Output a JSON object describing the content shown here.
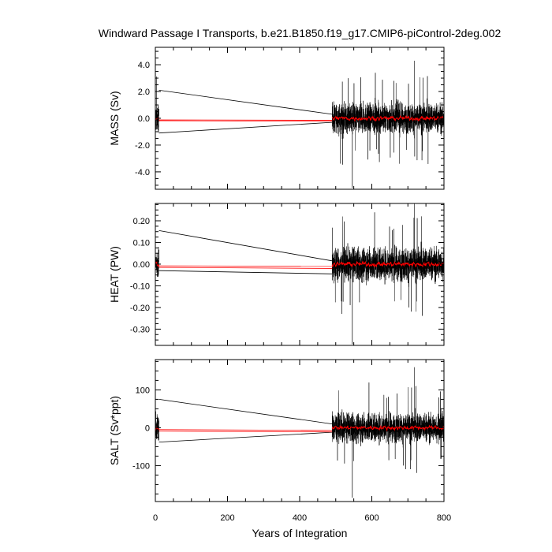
{
  "title": "Windward Passage I Transports, b.e21.B1850.f19_g17.CMIP6-piControl-2deg.002",
  "chart_data": [
    {
      "type": "line",
      "ylabel": "MASS (Sv)",
      "ylim": [
        -5.3,
        5.3
      ],
      "yticks": [
        4.0,
        2.0,
        0.0,
        -2.0,
        -4.0
      ],
      "ytick_labels": [
        "4.0",
        "2.0",
        "0.0",
        "-2.0",
        "-4.0"
      ],
      "yminor": 0.5,
      "amp": 1.0,
      "spike_hi": 4.3,
      "spike_lo": -5.2,
      "mean": 0.0,
      "red_amp": 0.18,
      "envelope_hi": [
        2.1,
        0.3
      ],
      "envelope_lo": [
        -1.1,
        -0.3
      ],
      "red_lines": [
        [
          -0.12,
          -0.15
        ],
        [
          -0.18,
          -0.22
        ]
      ]
    },
    {
      "type": "line",
      "ylabel": "HEAT (PW)",
      "ylim": [
        -0.375,
        0.28
      ],
      "yticks": [
        0.2,
        0.1,
        0.0,
        -0.1,
        -0.2,
        -0.3
      ],
      "ytick_labels": [
        "0.20",
        "0.10",
        "0.00",
        "-0.10",
        "-0.20",
        "-0.30"
      ],
      "yminor": 0.025,
      "amp": 0.07,
      "spike_hi": 0.28,
      "spike_lo": -0.37,
      "mean": 0.0,
      "red_amp": 0.012,
      "envelope_hi": [
        0.155,
        0.015
      ],
      "envelope_lo": [
        -0.03,
        -0.045
      ],
      "red_lines": [
        [
          -0.008,
          -0.01
        ],
        [
          -0.015,
          -0.02
        ]
      ]
    },
    {
      "type": "line",
      "ylabel": "SALT (Sv*ppt)",
      "xlabel": "Years of Integration",
      "ylim": [
        -195,
        180
      ],
      "yticks": [
        100,
        0,
        -100
      ],
      "ytick_labels": [
        "100",
        "0",
        "-100"
      ],
      "yminor": 25,
      "amp": 35,
      "spike_hi": 160,
      "spike_lo": -185,
      "mean": 0,
      "red_amp": 6,
      "envelope_hi": [
        75,
        10
      ],
      "envelope_lo": [
        -38,
        -12
      ],
      "red_lines": [
        [
          -5,
          -7
        ],
        [
          -9,
          -11
        ]
      ]
    }
  ],
  "xaxis": {
    "xlim": [
      0,
      800
    ],
    "ticks": [
      0,
      200,
      400,
      600,
      800
    ],
    "tick_labels": [
      "0",
      "200",
      "400",
      "600",
      "800"
    ],
    "minor": 50,
    "segments": [
      [
        0,
        10
      ],
      [
        490,
        800
      ]
    ]
  }
}
